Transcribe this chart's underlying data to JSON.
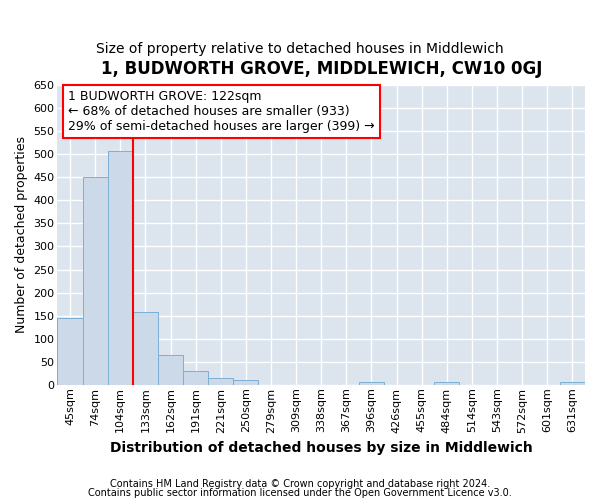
{
  "title": "1, BUDWORTH GROVE, MIDDLEWICH, CW10 0GJ",
  "subtitle": "Size of property relative to detached houses in Middlewich",
  "xlabel": "Distribution of detached houses by size in Middlewich",
  "ylabel": "Number of detached properties",
  "footnote1": "Contains HM Land Registry data © Crown copyright and database right 2024.",
  "footnote2": "Contains public sector information licensed under the Open Government Licence v3.0.",
  "categories": [
    "45sqm",
    "74sqm",
    "104sqm",
    "133sqm",
    "162sqm",
    "191sqm",
    "221sqm",
    "250sqm",
    "279sqm",
    "309sqm",
    "338sqm",
    "367sqm",
    "396sqm",
    "426sqm",
    "455sqm",
    "484sqm",
    "514sqm",
    "543sqm",
    "572sqm",
    "601sqm",
    "631sqm"
  ],
  "values": [
    145,
    450,
    507,
    158,
    65,
    30,
    14,
    10,
    0,
    0,
    0,
    0,
    5,
    0,
    0,
    5,
    0,
    0,
    0,
    0,
    5
  ],
  "bar_color": "#ccd9e8",
  "bar_edge_color": "#7bafd4",
  "vline_index": 3,
  "vline_color": "red",
  "annotation_line1": "1 BUDWORTH GROVE: 122sqm",
  "annotation_line2": "← 68% of detached houses are smaller (933)",
  "annotation_line3": "29% of semi-detached houses are larger (399) →",
  "ylim": [
    0,
    650
  ],
  "yticks": [
    0,
    50,
    100,
    150,
    200,
    250,
    300,
    350,
    400,
    450,
    500,
    550,
    600,
    650
  ],
  "bg_color": "#dce4ed",
  "title_fontsize": 12,
  "subtitle_fontsize": 10,
  "ylabel_fontsize": 9,
  "xlabel_fontsize": 10,
  "annotation_fontsize": 9,
  "tick_fontsize": 8,
  "footnote_fontsize": 7
}
